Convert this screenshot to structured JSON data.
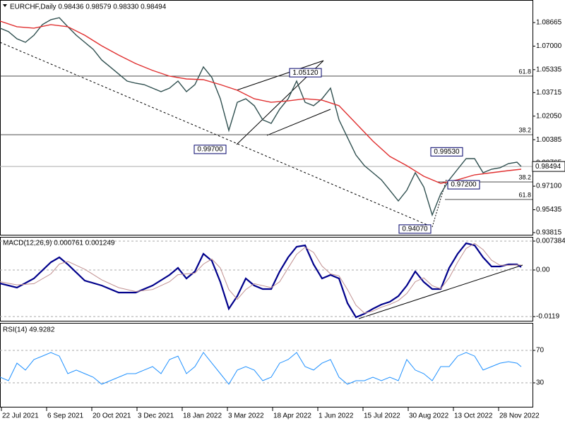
{
  "chart_data": [
    {
      "type": "line",
      "title": "EURCHF,Daily  0.98436 0.98579 0.98330 0.98494",
      "xlim": [
        0,
        377
      ],
      "ylim": [
        0.93616,
        1.1016
      ],
      "grid": false,
      "yticks": [
        1.08665,
        {
          "value": 1.07,
          "label": "1.07000"
        },
        1.05335,
        1.03715,
        {
          "value": 1.0205,
          "label": "1.02050"
        },
        1.00385,
        0.98765,
        {
          "value": 0.971,
          "label": "0.97100"
        },
        0.95435,
        0.93815
      ],
      "series": [
        {
          "color": "#2f4f4f",
          "x": [
            0,
            6,
            12,
            18,
            24,
            30,
            36,
            42,
            48,
            54,
            60,
            66,
            72,
            78,
            84,
            90,
            96,
            102,
            108,
            114,
            120,
            126,
            132,
            138,
            144,
            150,
            156,
            162,
            168,
            174,
            180,
            186,
            192,
            198,
            204,
            210,
            216,
            222,
            228,
            234,
            240,
            246,
            252,
            258,
            264,
            270,
            276,
            282,
            288,
            294,
            300,
            306,
            312,
            318,
            324,
            330,
            336,
            342,
            348,
            354,
            360,
            366,
            369
          ],
          "values": [
            1.0827,
            1.0802,
            1.0752,
            1.0727,
            1.0777,
            1.0852,
            1.0887,
            1.0901,
            1.0837,
            1.0777,
            1.0727,
            1.0677,
            1.0602,
            1.0553,
            1.0503,
            1.0453,
            1.0438,
            1.0428,
            1.0403,
            1.0378,
            1.0403,
            1.0453,
            1.0378,
            1.0428,
            1.0553,
            1.0478,
            1.0328,
            1.0104,
            1.0303,
            1.0328,
            1.0279,
            1.0179,
            1.0154,
            1.0254,
            1.0328,
            1.0453,
            1.0303,
            1.0279,
            1.0328,
            1.0403,
            1.0179,
            1.0054,
            0.993,
            0.9855,
            0.9805,
            0.9755,
            0.9681,
            0.9606,
            0.9681,
            0.9805,
            0.9705,
            0.9506,
            0.9656,
            0.9755,
            0.983,
            0.9905,
            0.9905,
            0.9805,
            0.983,
            0.984,
            0.987,
            0.988,
            0.98494
          ]
        },
        {
          "color": "#e03030",
          "x": [
            0,
            12,
            24,
            36,
            48,
            60,
            72,
            84,
            96,
            108,
            120,
            132,
            144,
            156,
            168,
            180,
            192,
            204,
            216,
            228,
            240,
            252,
            264,
            276,
            288,
            300,
            312,
            324,
            336,
            348,
            360,
            369
          ],
          "values": [
            1.0877,
            1.0837,
            1.0827,
            1.0852,
            1.0837,
            1.0777,
            1.0702,
            1.0637,
            1.0577,
            1.0528,
            1.0488,
            1.0468,
            1.0463,
            1.0428,
            1.0388,
            1.0328,
            1.0303,
            1.0313,
            1.0328,
            1.0318,
            1.0279,
            1.0154,
            1.0029,
            0.992,
            0.9855,
            0.978,
            0.973,
            0.9755,
            0.979,
            0.9805,
            0.982,
            0.983
          ]
        }
      ],
      "levels": [
        {
          "level": 1.0488,
          "text": "61.8"
        },
        {
          "level": 1.0074,
          "text": "38.2"
        },
        {
          "level": 0.974,
          "text": "38.2"
        },
        {
          "level": 0.9616,
          "text": "61.8"
        }
      ],
      "annotations": [
        {
          "value": 1.0512,
          "label": "1.05120"
        },
        {
          "value": 0.997,
          "label": "0.99700"
        },
        {
          "value": 0.9953,
          "label": "0.99530"
        },
        {
          "value": 0.972,
          "label": "0.97200"
        },
        {
          "value": 0.9407,
          "label": "0.94070"
        }
      ],
      "last_price": {
        "value": 0.98494,
        "label": "0.98494"
      }
    },
    {
      "type": "line",
      "title": "MACD(12,26,9) 0.000761 0.001249",
      "xlim": [
        0,
        377
      ],
      "ylim": [
        -0.01315,
        0.00846
      ],
      "grid": true,
      "yticks": [
        0.007384,
        {
          "value": 0,
          "label": "0.00"
        },
        -0.0119
      ],
      "x": [
        0,
        12,
        24,
        36,
        42,
        48,
        60,
        72,
        84,
        96,
        108,
        120,
        126,
        132,
        138,
        144,
        150,
        156,
        162,
        168,
        174,
        180,
        186,
        192,
        198,
        204,
        210,
        216,
        222,
        228,
        234,
        240,
        246,
        252,
        258,
        264,
        270,
        276,
        282,
        288,
        294,
        300,
        306,
        312,
        318,
        324,
        330,
        336,
        342,
        348,
        354,
        360,
        366,
        369
      ],
      "series": [
        {
          "color": "#00008b",
          "width": 2.2,
          "values": [
            -0.00342,
            -0.0045,
            -0.00216,
            0.00198,
            0.00324,
            0.00144,
            -0.0027,
            -0.00396,
            -0.00576,
            -0.00576,
            -0.00396,
            -0.00126,
            0.00054,
            -0.00216,
            -0.00036,
            0.00414,
            0.00234,
            -0.00306,
            -0.0099,
            -0.00666,
            -0.00216,
            -0.00396,
            -0.00486,
            -0.00486,
            -0.00036,
            0.00324,
            0.00594,
            0.0063,
            0.00144,
            -0.00216,
            -0.00126,
            -0.00216,
            -0.00846,
            -0.01207,
            -0.01117,
            -0.0099,
            -0.00882,
            -0.0081,
            -0.00666,
            -0.00396,
            -0.00036,
            -0.00306,
            -0.00486,
            -0.00486,
            0.00054,
            0.00414,
            0.00684,
            0.0063,
            0.00324,
            0.0009,
            0.0009,
            0.00144,
            0.00144,
            0.00076
          ]
        },
        {
          "color": "#c09090",
          "width": 1,
          "values": [
            -0.003,
            -0.0038,
            -0.0035,
            -0.001,
            0.0015,
            0.0022,
            0.0002,
            -0.0025,
            -0.0045,
            -0.0055,
            -0.005,
            -0.003,
            -0.0012,
            -0.001,
            -0.0008,
            0.0015,
            0.0028,
            0.0005,
            -0.005,
            -0.0075,
            -0.005,
            -0.0035,
            -0.004,
            -0.0045,
            -0.003,
            0.0005,
            0.004,
            0.0058,
            0.0045,
            0.001,
            -0.001,
            -0.0015,
            -0.005,
            -0.009,
            -0.011,
            -0.0105,
            -0.0095,
            -0.0088,
            -0.0078,
            -0.006,
            -0.003,
            -0.002,
            -0.004,
            -0.0048,
            -0.002,
            0.002,
            0.0055,
            0.0068,
            0.0052,
            0.0025,
            0.0012,
            0.0012,
            0.0013,
            0.00125
          ]
        }
      ]
    },
    {
      "type": "line",
      "title": "RSI(14) 49.9282",
      "xlim": [
        0,
        377
      ],
      "ylim": [
        0,
        100
      ],
      "grid": true,
      "yticks": [
        70,
        30
      ],
      "xticks": [
        {
          "value": 1,
          "label": "22 Jul 2021"
        },
        {
          "value": 33,
          "label": "6 Sep 2021"
        },
        {
          "value": 65,
          "label": "20 Oct 2021"
        },
        {
          "value": 97,
          "label": "3 Dec 2021"
        },
        {
          "value": 129,
          "label": "18 Jan 2022"
        },
        {
          "value": 161,
          "label": "3 Mar 2022"
        },
        {
          "value": 193,
          "label": "18 Apr 2022"
        },
        {
          "value": 225,
          "label": "1 Jun 2022"
        },
        {
          "value": 257,
          "label": "15 Jul 2022"
        },
        {
          "value": 289,
          "label": "30 Aug 2022"
        },
        {
          "value": 321,
          "label": "13 Oct 2022"
        },
        {
          "value": 353,
          "label": "28 Nov 2022"
        }
      ],
      "x": [
        0,
        6,
        12,
        18,
        24,
        30,
        36,
        42,
        48,
        54,
        60,
        66,
        72,
        78,
        84,
        90,
        96,
        102,
        108,
        114,
        120,
        126,
        132,
        138,
        144,
        150,
        156,
        162,
        168,
        174,
        180,
        186,
        192,
        198,
        204,
        210,
        216,
        222,
        228,
        234,
        240,
        246,
        252,
        258,
        264,
        270,
        276,
        282,
        288,
        294,
        300,
        306,
        312,
        318,
        324,
        330,
        336,
        342,
        348,
        354,
        360,
        366,
        369
      ],
      "series": [
        {
          "color": "#1e90ff",
          "width": 1,
          "values": [
            37,
            32.6,
            54.3,
            45.7,
            58.7,
            63,
            67.4,
            63,
            41.3,
            45.7,
            41.3,
            37,
            28.3,
            32.6,
            37,
            41.3,
            41.3,
            45.7,
            50,
            41.3,
            58.7,
            63,
            41.3,
            50,
            67.4,
            54.3,
            41.3,
            28.3,
            45.7,
            50,
            45.7,
            32.6,
            37,
            54.3,
            58.7,
            67.4,
            50,
            45.7,
            54.3,
            58.7,
            37,
            28.3,
            32.6,
            32.6,
            37,
            32.6,
            37,
            32.6,
            58.7,
            45.7,
            41.3,
            32.6,
            50,
            50,
            63,
            67.4,
            63,
            45.7,
            50,
            54.3,
            56.1,
            54.3,
            49.93
          ]
        }
      ]
    }
  ]
}
